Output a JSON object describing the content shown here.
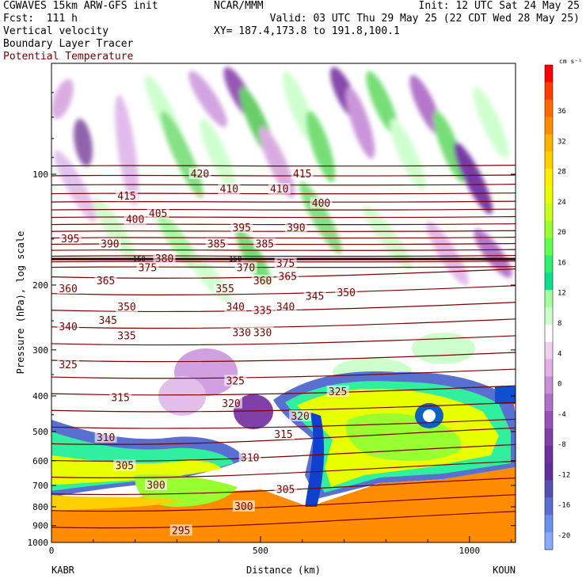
{
  "header": {
    "model": "CGWAVES 15km ARW-GFS init",
    "org": "NCAR/MMM",
    "init": "Init: 12 UTC Sat 24 May 25",
    "fcst": "Fcst:  111 h",
    "valid": "Valid: 03 UTC Thu 29 May 25 (22 CDT Wed 28 May 25)",
    "line3_left": "Vertical velocity",
    "xy": "XY= 187.4,173.8 to 191.8,100.1",
    "line4_left": "Boundary Layer Tracer",
    "line5_left": "Potential Temperature"
  },
  "colors": {
    "theta": "#7a0000",
    "frame": "#000000"
  },
  "chart_data": {
    "type": "heatmap",
    "xlabel": "Distance (km)",
    "ylabel": "Pressure (hPa), log scale",
    "xlim": [
      0,
      1110
    ],
    "ylim": [
      1000,
      50
    ],
    "x_ticks": [
      "0",
      "500",
      "1000"
    ],
    "x_end_labels": {
      "left": "KABR",
      "right": "KOUN"
    },
    "y_ticks": [
      "100",
      "200",
      "300",
      "400",
      "500",
      "600",
      "700",
      "800",
      "900",
      "1000"
    ],
    "colorbar": {
      "units": "cm s⁻¹",
      "labels": [
        "36",
        "32",
        "28",
        "24",
        "20",
        "16",
        "12",
        "8",
        "4",
        "0",
        "-4",
        "-8",
        "-12",
        "-16",
        "-20"
      ],
      "colors": [
        "#ff0000",
        "#ff3c00",
        "#ff6a00",
        "#ff8c00",
        "#ffb000",
        "#ffcf00",
        "#ffee00",
        "#e8ff00",
        "#c8ff20",
        "#98ff30",
        "#60ff50",
        "#30f070",
        "#10dd90",
        "#a0ffa0",
        "#ccffcc",
        "#ffffff",
        "#f0d0f0",
        "#e0b0e8",
        "#c890d8",
        "#b070c8",
        "#9850b8",
        "#8040a8",
        "#7030a0",
        "#603098",
        "#5850b0",
        "#5a70d0",
        "#6a90f0",
        "#8aaaff"
      ]
    },
    "theta_contours": [
      {
        "label": "415",
        "x": 180,
        "p": 115
      },
      {
        "label": "420",
        "x": 355,
        "p": 100
      },
      {
        "label": "410",
        "x": 425,
        "p": 110
      },
      {
        "label": "410",
        "x": 545,
        "p": 110
      },
      {
        "label": "415",
        "x": 600,
        "p": 100
      },
      {
        "label": "405",
        "x": 255,
        "p": 128
      },
      {
        "label": "400",
        "x": 200,
        "p": 133
      },
      {
        "label": "400",
        "x": 645,
        "p": 120
      },
      {
        "label": "395",
        "x": 45,
        "p": 150
      },
      {
        "label": "390",
        "x": 140,
        "p": 155
      },
      {
        "label": "395",
        "x": 455,
        "p": 140
      },
      {
        "label": "390",
        "x": 585,
        "p": 140
      },
      {
        "label": "385",
        "x": 395,
        "p": 155
      },
      {
        "label": "385",
        "x": 510,
        "p": 155
      },
      {
        "label": "380",
        "x": 270,
        "p": 170
      },
      {
        "label": "375",
        "x": 230,
        "p": 180
      },
      {
        "label": "375",
        "x": 560,
        "p": 175
      },
      {
        "label": "370",
        "x": 465,
        "p": 180
      },
      {
        "label": "360",
        "x": 40,
        "p": 205
      },
      {
        "label": "365",
        "x": 130,
        "p": 195
      },
      {
        "label": "360",
        "x": 505,
        "p": 195
      },
      {
        "label": "365",
        "x": 565,
        "p": 190
      },
      {
        "label": "355",
        "x": 415,
        "p": 205
      },
      {
        "label": "350",
        "x": 180,
        "p": 230
      },
      {
        "label": "345",
        "x": 135,
        "p": 250
      },
      {
        "label": "345",
        "x": 630,
        "p": 215
      },
      {
        "label": "350",
        "x": 705,
        "p": 210
      },
      {
        "label": "340",
        "x": 40,
        "p": 260
      },
      {
        "label": "340",
        "x": 440,
        "p": 230
      },
      {
        "label": "335",
        "x": 505,
        "p": 235
      },
      {
        "label": "340",
        "x": 560,
        "p": 230
      },
      {
        "label": "335",
        "x": 180,
        "p": 275
      },
      {
        "label": "330",
        "x": 455,
        "p": 270
      },
      {
        "label": "330",
        "x": 505,
        "p": 270
      },
      {
        "label": "325",
        "x": 40,
        "p": 330
      },
      {
        "label": "325",
        "x": 440,
        "p": 365
      },
      {
        "label": "325",
        "x": 685,
        "p": 390
      },
      {
        "label": "320",
        "x": 430,
        "p": 420
      },
      {
        "label": "320",
        "x": 595,
        "p": 455
      },
      {
        "label": "315",
        "x": 165,
        "p": 405
      },
      {
        "label": "315",
        "x": 555,
        "p": 510
      },
      {
        "label": "310",
        "x": 130,
        "p": 520
      },
      {
        "label": "310",
        "x": 475,
        "p": 590
      },
      {
        "label": "305",
        "x": 175,
        "p": 620
      },
      {
        "label": "305",
        "x": 560,
        "p": 720
      },
      {
        "label": "300",
        "x": 250,
        "p": 700
      },
      {
        "label": "300",
        "x": 460,
        "p": 800
      },
      {
        "label": "295",
        "x": 310,
        "p": 930
      }
    ],
    "tropopause_labels": [
      {
        "label": "150",
        "x": 210,
        "p": 170
      },
      {
        "label": "150",
        "x": 440,
        "p": 170
      }
    ]
  }
}
